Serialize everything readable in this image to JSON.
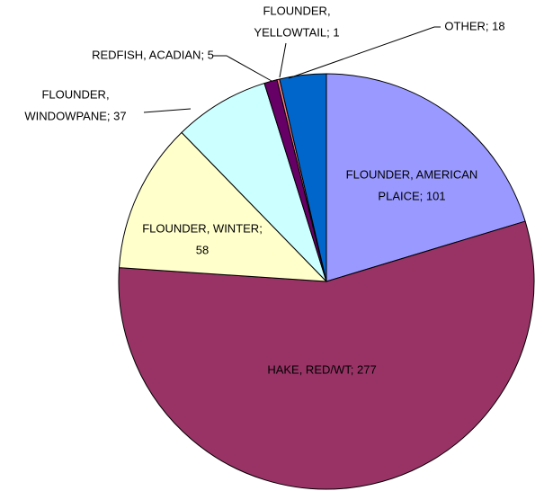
{
  "chart_data": {
    "type": "pie",
    "values": [
      101,
      277,
      58,
      37,
      5,
      1,
      18
    ],
    "value_labels": [
      [
        "FLOUNDER, AMERICAN",
        "PLAICE; 101"
      ],
      [
        "HAKE, RED/WT; 277"
      ],
      [
        "FLOUNDER, WINTER;",
        "58"
      ],
      [
        "FLOUNDER,",
        "WINDOWPANE; 37"
      ],
      [
        "REDFISH, ACADIAN; 5"
      ],
      [
        "FLOUNDER,",
        "YELLOWTAIL; 1"
      ],
      [
        "OTHER; 18"
      ]
    ],
    "colors": [
      "#9999ff",
      "#993366",
      "#ffffcc",
      "#ccffff",
      "#660066",
      "#ff8080",
      "#0066cc"
    ]
  }
}
